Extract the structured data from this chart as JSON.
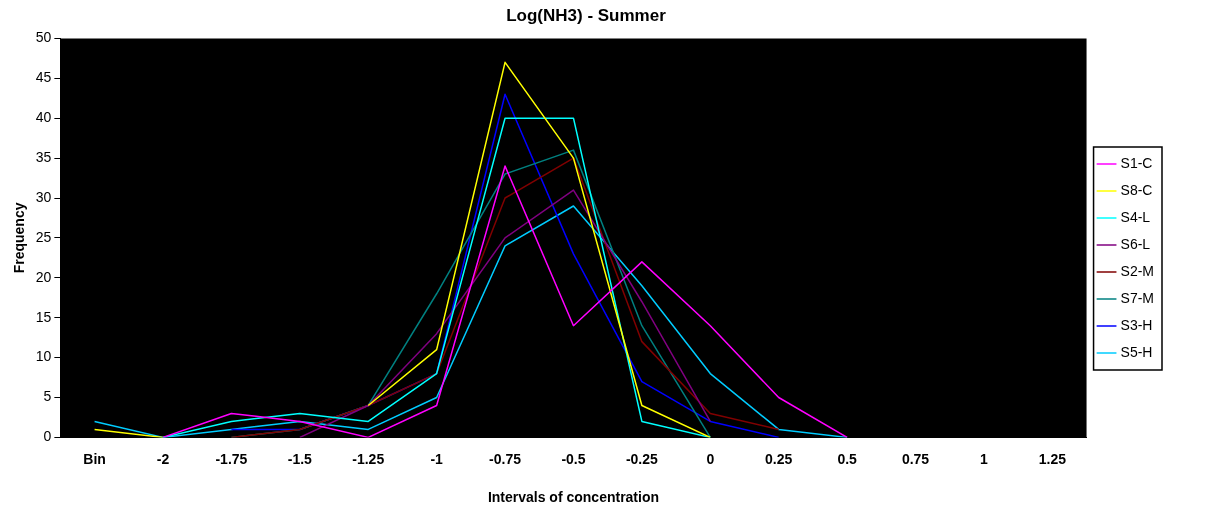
{
  "chart_data": {
    "type": "line",
    "title": "Log(NH3) - Summer",
    "xlabel": "Intervals of concentration",
    "ylabel": "Frequency",
    "categories": [
      "Bin",
      "-2",
      "-1.75",
      "-1.5",
      "-1.25",
      "-1",
      "-0.75",
      "-0.5",
      "-0.25",
      "0",
      "0.25",
      "0.5",
      "0.75",
      "1",
      "1.25"
    ],
    "ylim": [
      0,
      50
    ],
    "yticks": [
      0,
      5,
      10,
      15,
      20,
      25,
      30,
      35,
      40,
      45,
      50
    ],
    "grid": false,
    "legend": "right",
    "marker": "none",
    "line_style": "solid",
    "series": [
      {
        "name": "S1-C",
        "color": "#ff00ff",
        "values": [
          null,
          0,
          3,
          2,
          0,
          4,
          34,
          14,
          22,
          14,
          5,
          0,
          null,
          null,
          null
        ]
      },
      {
        "name": "S8-C",
        "color": "#ffff00",
        "values": [
          1,
          0,
          null,
          null,
          4,
          11,
          47,
          35,
          4,
          0,
          null,
          null,
          null,
          null,
          null
        ]
      },
      {
        "name": "S4-L",
        "color": "#00ffff",
        "values": [
          null,
          0,
          2,
          3,
          2,
          8,
          40,
          40,
          2,
          0,
          null,
          null,
          null,
          null,
          null
        ]
      },
      {
        "name": "S6-L",
        "color": "#800080",
        "values": [
          null,
          null,
          null,
          0,
          4,
          13,
          25,
          31,
          17,
          2,
          null,
          null,
          null,
          null,
          null
        ]
      },
      {
        "name": "S2-M",
        "color": "#800000",
        "values": [
          null,
          null,
          0,
          1,
          4,
          8,
          30,
          35,
          12,
          3,
          1,
          null,
          null,
          null,
          null
        ]
      },
      {
        "name": "S7-M",
        "color": "#008080",
        "values": [
          null,
          null,
          0,
          1,
          4,
          18,
          33,
          36,
          14,
          0,
          null,
          null,
          null,
          null,
          null
        ]
      },
      {
        "name": "S3-H",
        "color": "#0000ff",
        "values": [
          null,
          null,
          1,
          1,
          4,
          8,
          43,
          23,
          7,
          2,
          0,
          null,
          null,
          null,
          null
        ]
      },
      {
        "name": "S5-H",
        "color": "#00ccff",
        "values": [
          2,
          0,
          1,
          2,
          1,
          5,
          24,
          29,
          19,
          8,
          1,
          0,
          null,
          null,
          null
        ]
      }
    ]
  }
}
